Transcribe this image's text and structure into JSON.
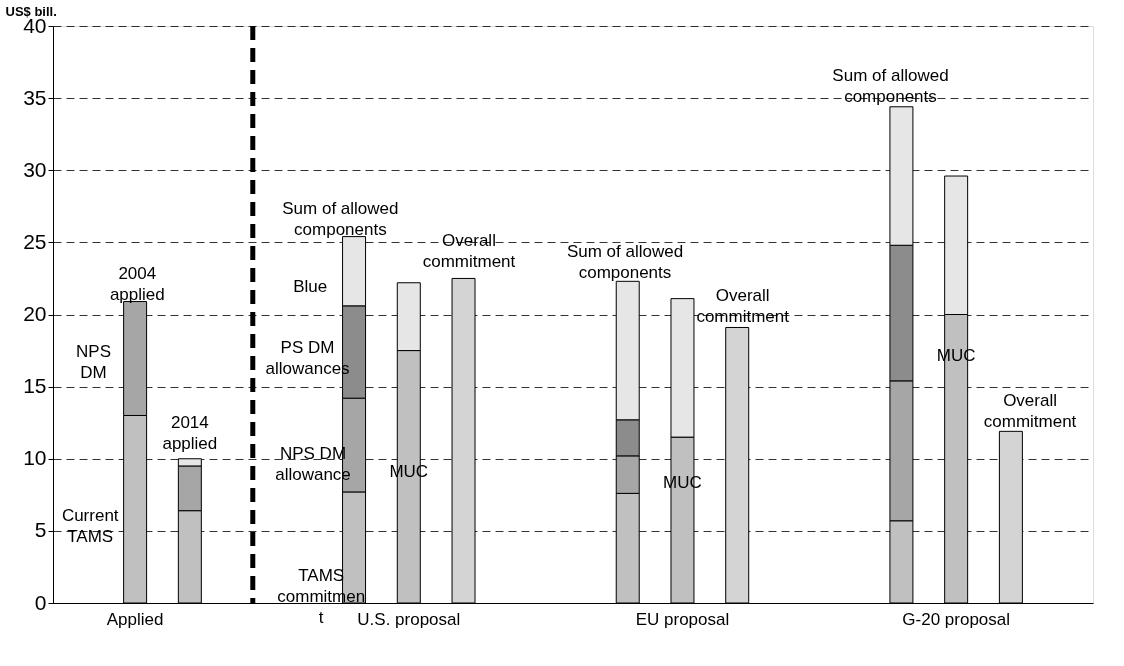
{
  "chart_data": {
    "type": "bar",
    "stacked": true,
    "ylabel": "US$ bill.",
    "categories": [
      null,
      "Applied",
      null,
      null,
      null,
      null,
      "U.S. proposal",
      null,
      null,
      null,
      null,
      "EU proposal",
      null,
      null,
      null,
      null,
      "G-20 proposal",
      null,
      null
    ],
    "ylim": [
      0,
      40
    ],
    "yticks": [
      0,
      5,
      10,
      15,
      20,
      25,
      30,
      35,
      40
    ],
    "grid": "y",
    "series": [
      {
        "color": "#c0c0c0",
        "values": [
          null,
          13.0,
          6.4,
          null,
          null,
          7.7,
          17.5,
          null,
          null,
          null,
          7.6,
          11.5,
          null,
          null,
          null,
          5.7,
          20.0,
          null,
          null
        ]
      },
      {
        "color": "#a6a6a6",
        "values": [
          null,
          7.9,
          3.1,
          null,
          null,
          6.5,
          null,
          null,
          null,
          null,
          2.6,
          null,
          null,
          null,
          null,
          9.7,
          null,
          null,
          null
        ]
      },
      {
        "color": "#8c8c8c",
        "values": [
          null,
          null,
          null,
          null,
          null,
          6.4,
          null,
          null,
          null,
          null,
          2.5,
          null,
          null,
          null,
          null,
          9.4,
          null,
          null,
          null
        ]
      },
      {
        "color": "#e6e6e6",
        "values": [
          null,
          null,
          0.5,
          null,
          null,
          4.8,
          4.7,
          null,
          null,
          null,
          9.6,
          9.6,
          null,
          null,
          null,
          9.6,
          9.6,
          null,
          null
        ]
      },
      {
        "color": "#d4d4d4",
        "values": [
          null,
          null,
          null,
          null,
          null,
          null,
          null,
          22.5,
          null,
          null,
          null,
          null,
          19.1,
          null,
          null,
          null,
          null,
          11.9,
          null
        ]
      }
    ],
    "annotations": [
      "2004\napplied",
      "NPS\nDM",
      "Current\nTAMS",
      "2014\napplied",
      "Sum of allowed\ncomponents",
      "Overall\ncommitment",
      "Blue",
      "PS DM\nallowances",
      "NPS DM\nallowance",
      "TAMS\ncommitmen\nt",
      "MUC",
      "Sum of allowed\ncomponents",
      "MUC",
      "Overall\ncommitment",
      "Sum of allowed\ncomponents",
      "MUC",
      "Overall\ncommitment"
    ]
  }
}
